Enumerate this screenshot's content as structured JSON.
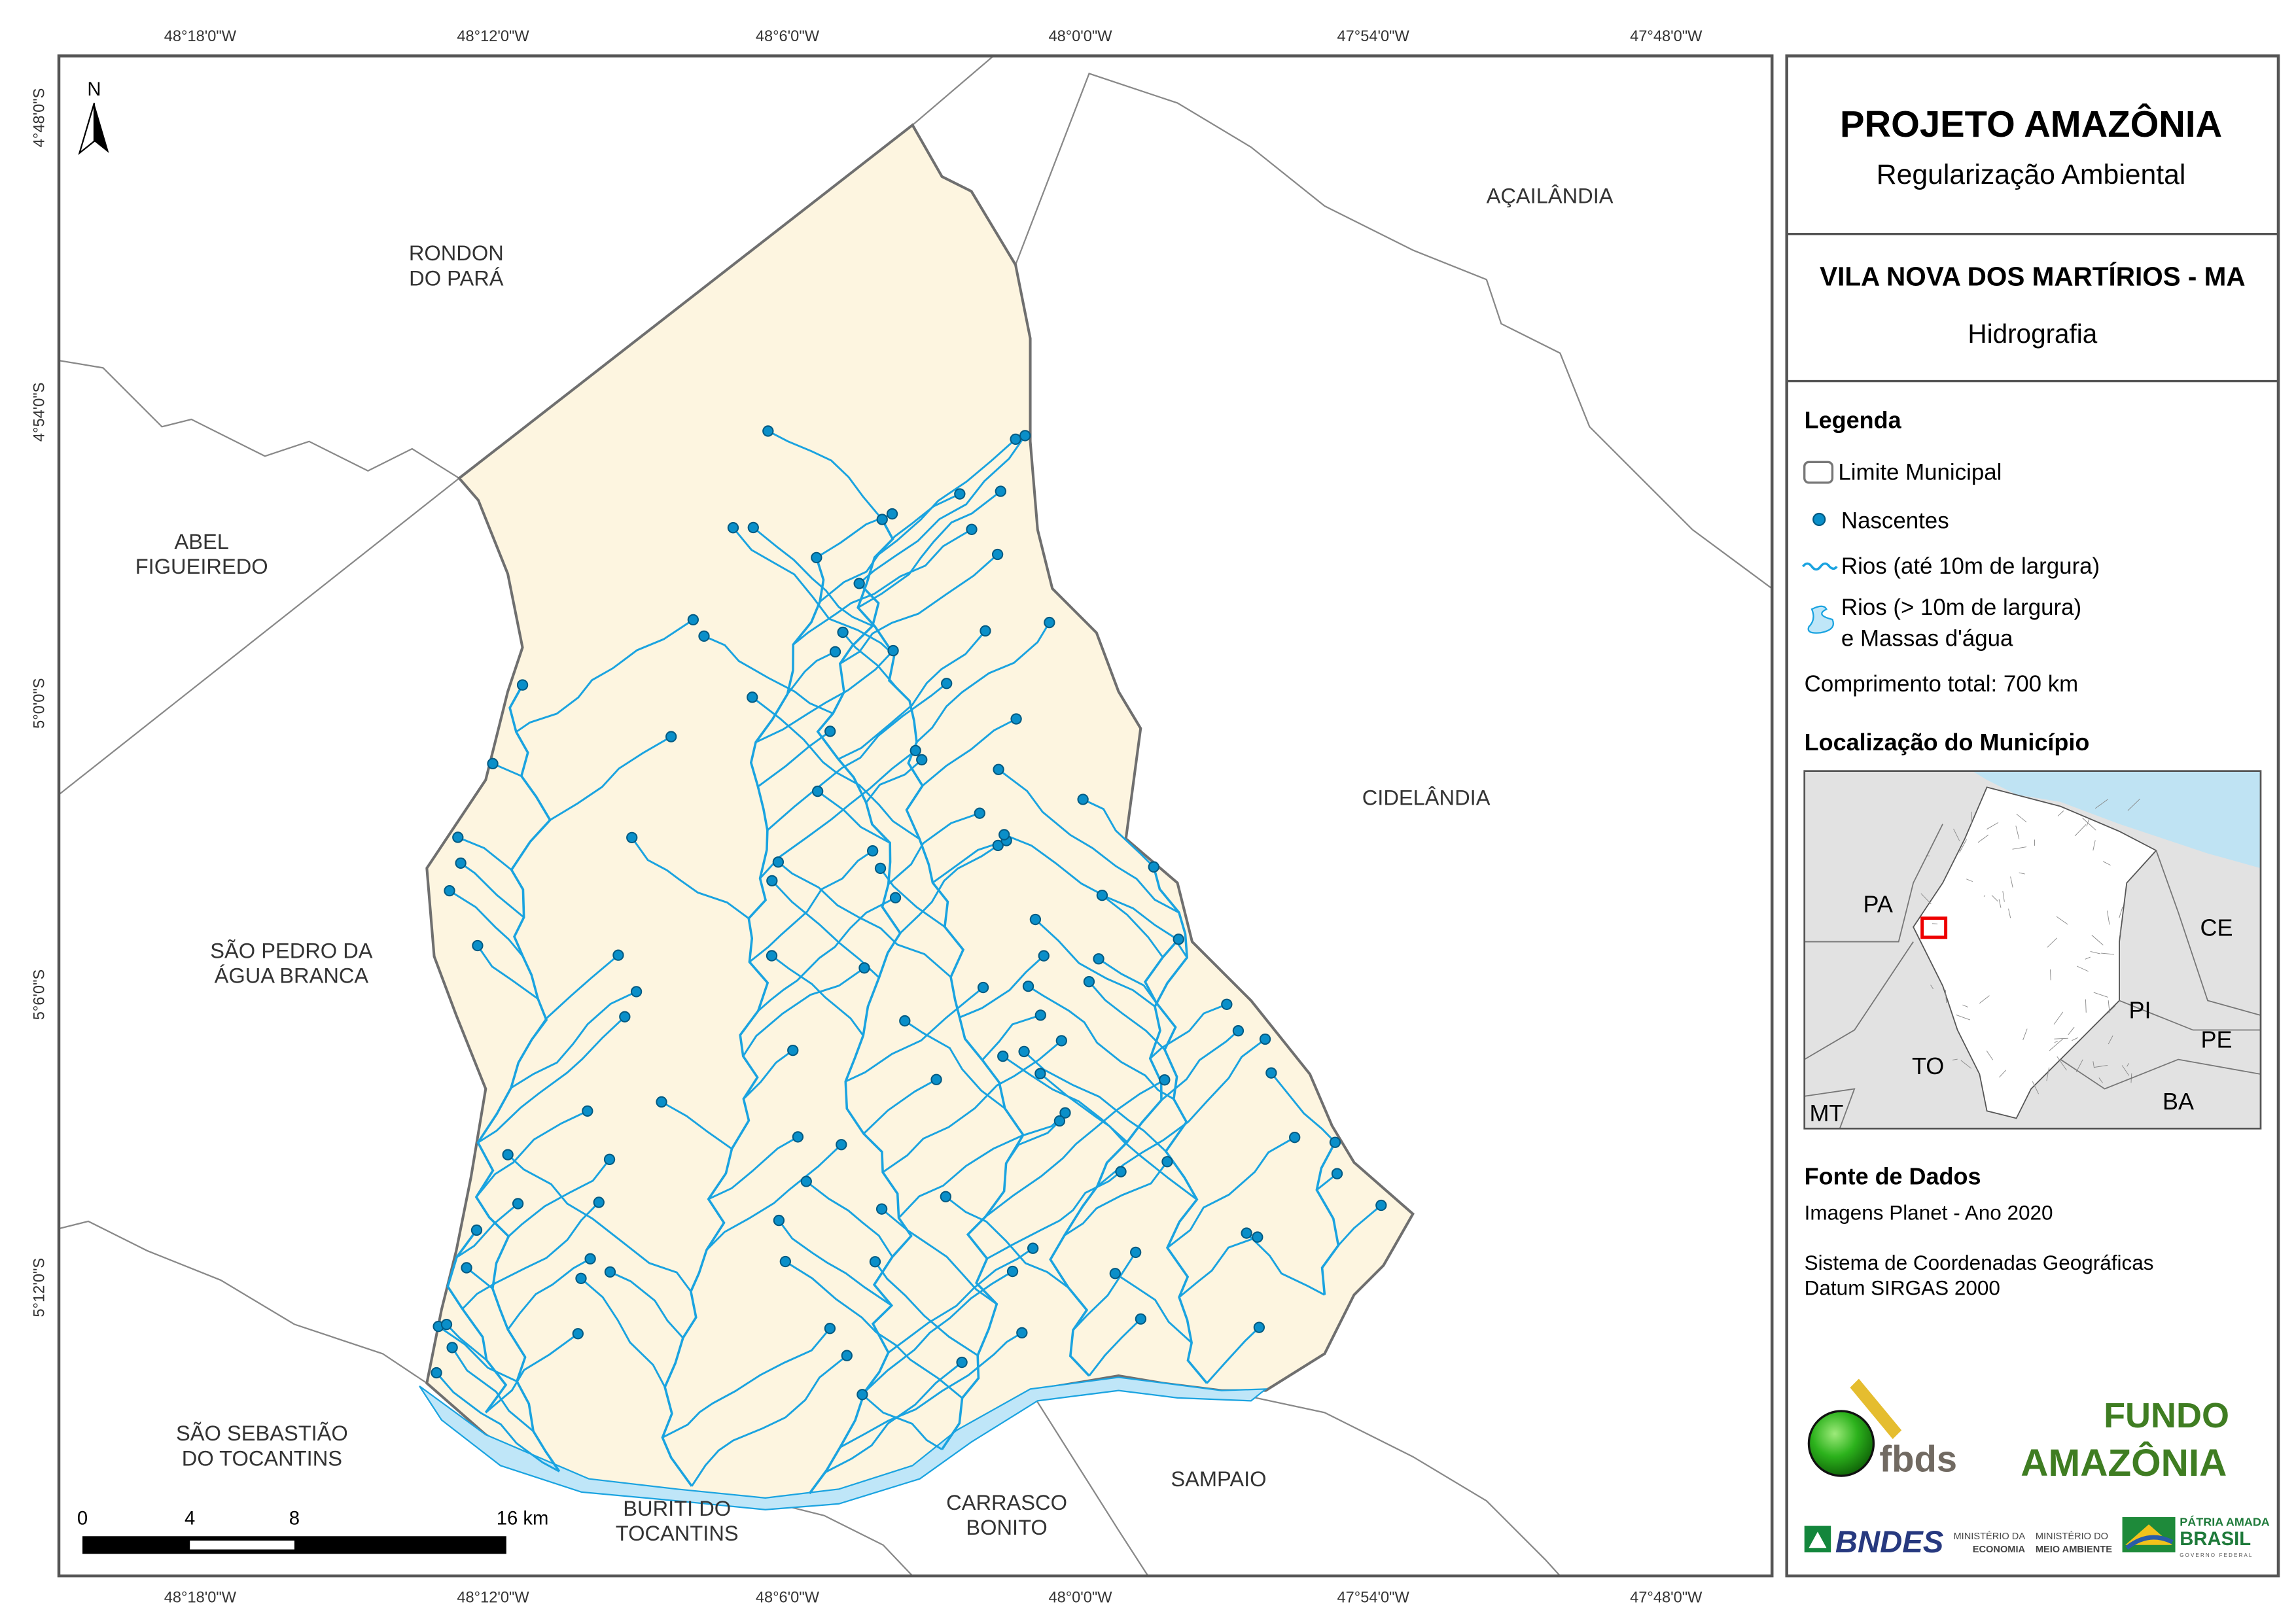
{
  "title": "PROJETO AMAZÔNIA",
  "subtitle": "Regularização Ambiental",
  "municipality": "VILA NOVA DOS MARTÍRIOS - MA",
  "theme": "Hidrografia",
  "legend": {
    "heading": "Legenda",
    "items": [
      "Limite Municipal",
      "Nascentes",
      "Rios (até 10m de largura)",
      "Rios (> 10m de largura)",
      "e Massas d'água"
    ],
    "total": "Comprimento total:  700 km"
  },
  "location": {
    "heading": "Localização do Município",
    "states": [
      "PA",
      "CE",
      "PI",
      "TO",
      "PE",
      "BA",
      "MT"
    ]
  },
  "sources": {
    "heading": "Fonte de Dados",
    "lines": [
      "Imagens Planet - Ano 2020",
      "Sistema de Coordenadas Geográficas",
      "Datum SIRGAS 2000"
    ]
  },
  "logos": [
    "fbds",
    "FUNDO",
    "AMAZÔNIA",
    "BNDES",
    "MINISTÉRIO DA",
    "ECONOMIA",
    "MINISTÉRIO DO",
    "MEIO AMBIENTE",
    "PÁTRIA AMADA",
    "BRASIL",
    "GOVERNO FEDERAL"
  ],
  "map": {
    "north": "N",
    "longitudes": [
      "48°18'0\"W",
      "48°12'0\"W",
      "48°6'0\"W",
      "48°0'0\"W",
      "47°54'0\"W",
      "47°48'0\"W"
    ],
    "latitudes": [
      "4°48'0\"S",
      "4°54'0\"S",
      "5°0'0\"S",
      "5°6'0\"S",
      "5°12'0\"S"
    ],
    "neighbors": [
      [
        "RONDON",
        "DO PARÁ"
      ],
      [
        "AÇAILÂNDIA"
      ],
      [
        "ABEL",
        "FIGUEIREDO"
      ],
      [
        "CIDELÂNDIA"
      ],
      [
        "SÃO PEDRO DA",
        "ÁGUA BRANCA"
      ],
      [
        "SÃO SEBASTIÃO",
        "DO TOCANTINS"
      ],
      [
        "BURITI DO",
        "TOCANTINS"
      ],
      [
        "CARRASCO",
        "BONITO"
      ],
      [
        "SAMPAIO"
      ]
    ],
    "scale": [
      "0",
      "4",
      "8",
      "16 km"
    ]
  },
  "colors": {
    "land": "#fdf5e0",
    "river": "#1aa3e0",
    "water": "#bfe6f8",
    "spring": "#0a8fc9",
    "border": "#777777"
  }
}
